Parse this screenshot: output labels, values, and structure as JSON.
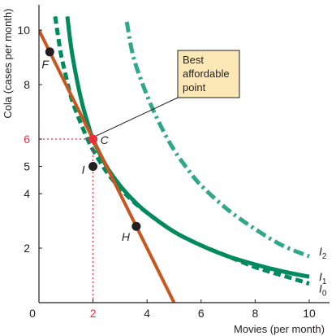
{
  "chart_data": {
    "type": "line",
    "title": "",
    "xlabel": "Movies (per month)",
    "ylabel": "Cola (cases per month)",
    "xlim": [
      0,
      10.5
    ],
    "ylim": [
      0,
      11
    ],
    "x_ticks": [
      "2",
      "4",
      "6",
      "8",
      "10"
    ],
    "origin_label": "0",
    "y_ticks": [
      "2",
      "4",
      "5",
      "6",
      "8",
      "10"
    ],
    "highlight": {
      "x": 2,
      "y": 6,
      "x_label": "2",
      "y_label": "6",
      "color": "#e8303d"
    },
    "budget_line": {
      "x": [
        0,
        5
      ],
      "y": [
        10,
        0
      ],
      "color": "#c8561e"
    },
    "series": [
      {
        "name": "I",
        "subscript": "0",
        "style": "dashed",
        "color": "#008a5e",
        "x": [
          0.6,
          0.8,
          1.0,
          1.2,
          1.5,
          1.8,
          2.0,
          2.5,
          3.0,
          3.5,
          4.0,
          5.0,
          6.0,
          7.0,
          8.0,
          9.0,
          10.0
        ],
        "y": [
          10.5,
          9.2,
          8.3,
          7.5,
          6.7,
          6.0,
          5.6,
          4.8,
          4.2,
          3.7,
          3.3,
          2.6,
          2.1,
          1.7,
          1.3,
          1.0,
          0.7
        ]
      },
      {
        "name": "I",
        "subscript": "1",
        "style": "solid",
        "color": "#008a5e",
        "x": [
          1.05,
          1.2,
          1.4,
          1.6,
          1.8,
          2.0,
          2.5,
          3.0,
          3.5,
          4.0,
          5.0,
          6.0,
          7.0,
          8.0,
          9.0,
          10.0
        ],
        "y": [
          10.5,
          9.3,
          8.2,
          7.3,
          6.6,
          6.0,
          5.0,
          4.3,
          3.75,
          3.3,
          2.6,
          2.1,
          1.7,
          1.4,
          1.15,
          0.95
        ]
      },
      {
        "name": "I",
        "subscript": "2",
        "style": "dashdot",
        "color": "#2fa88a",
        "x": [
          3.25,
          3.5,
          4.0,
          4.5,
          5.0,
          5.5,
          6.0,
          7.0,
          8.0,
          9.0,
          10.0
        ],
        "y": [
          10.3,
          9.0,
          7.6,
          6.5,
          5.6,
          4.9,
          4.3,
          3.4,
          2.7,
          2.1,
          1.7
        ]
      }
    ],
    "points": [
      {
        "label": "F",
        "x": 0.4,
        "y": 9.2,
        "color": "#231f20"
      },
      {
        "label": "C",
        "x": 2.0,
        "y": 6.0,
        "color": "#e8303d"
      },
      {
        "label": "I",
        "x": 2.0,
        "y": 5.0,
        "color": "#231f20"
      },
      {
        "label": "H",
        "x": 3.6,
        "y": 2.8,
        "color": "#231f20"
      }
    ],
    "annotation": {
      "lines": [
        "Best",
        "affordable",
        "point"
      ],
      "fill": "#fce7b6",
      "target": "C"
    }
  }
}
